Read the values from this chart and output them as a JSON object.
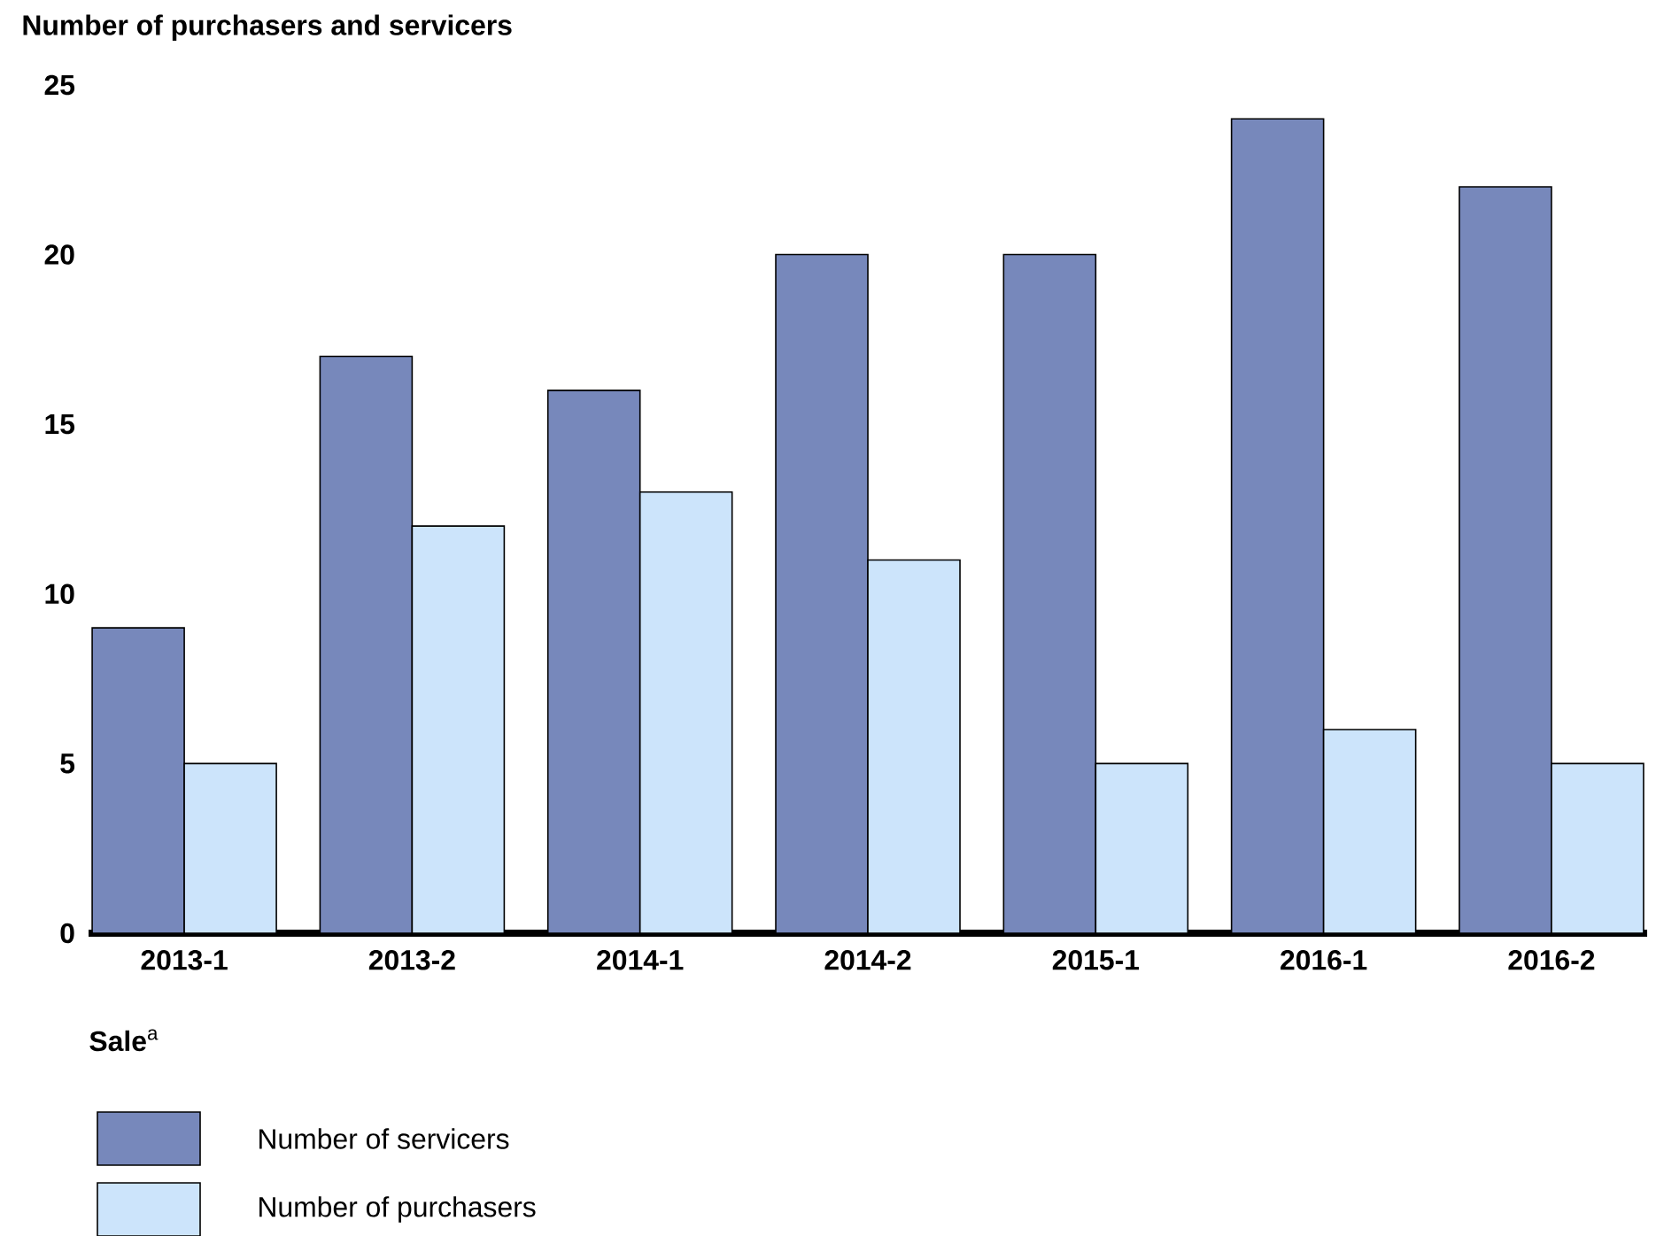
{
  "chart_data": {
    "type": "bar",
    "ylabel": "Number of purchasers and servicers",
    "xlabel": "**Sale**$^{a}$",
    "categories": [
      "2013-1",
      "2013-2",
      "2014-1",
      "2014-2",
      "2015-1",
      "2016-1",
      "2016-2"
    ],
    "series": [
      {
        "name": "Number of servicers",
        "color": "#7788bb",
        "values": [
          9,
          17,
          16,
          20,
          20,
          24,
          22
        ]
      },
      {
        "name": "Number of purchasers",
        "color": "#cce4fb",
        "values": [
          5,
          12,
          13,
          11,
          5,
          6,
          5
        ]
      }
    ],
    "ylim": [
      0,
      25
    ],
    "yticks": [
      0,
      5,
      10,
      15,
      20,
      25
    ],
    "legend": "bottom"
  }
}
